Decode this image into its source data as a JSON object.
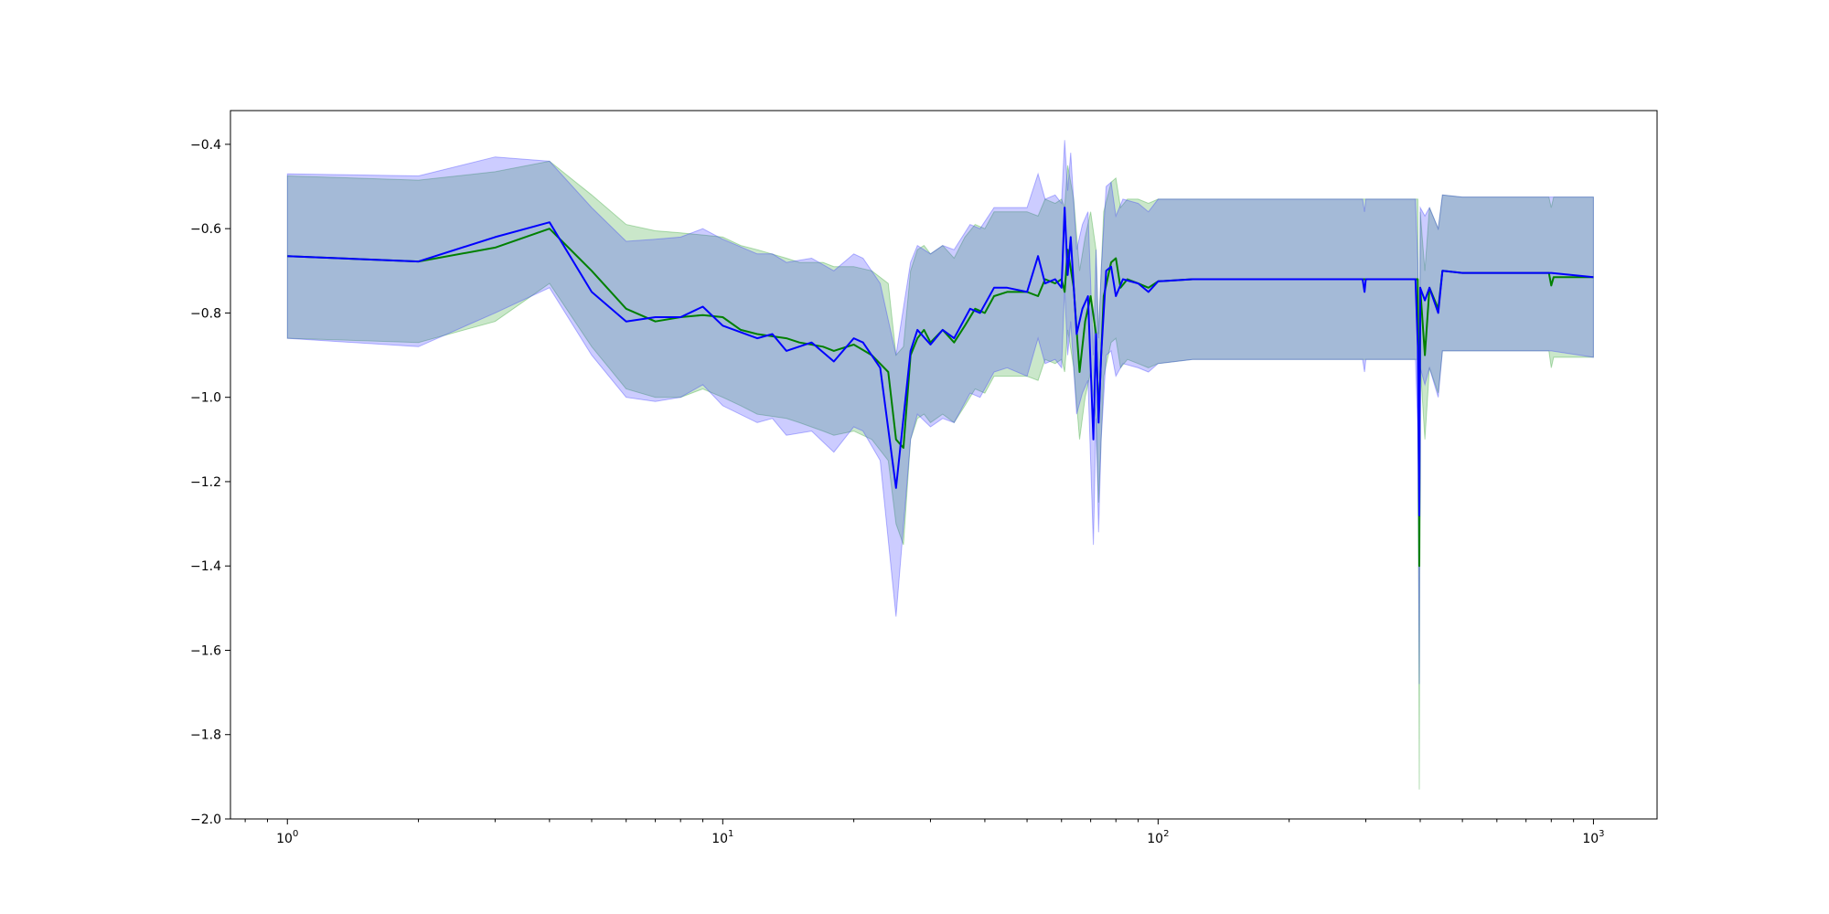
{
  "chart_data": {
    "type": "line",
    "title": "",
    "xlabel": "",
    "ylabel": "",
    "xscale": "log",
    "xlim": [
      0.74,
      1400
    ],
    "ylim": [
      -2.0,
      -0.32
    ],
    "grid": false,
    "legend": "none",
    "x_ticks": [
      {
        "value": 1,
        "base": "10",
        "exp": "0"
      },
      {
        "value": 10,
        "base": "10",
        "exp": "1"
      },
      {
        "value": 100,
        "base": "10",
        "exp": "2"
      },
      {
        "value": 1000,
        "base": "10",
        "exp": "3"
      }
    ],
    "y_ticks": [
      {
        "value": -0.4,
        "label": "−0.4"
      },
      {
        "value": -0.6,
        "label": "−0.6"
      },
      {
        "value": -0.8,
        "label": "−0.8"
      },
      {
        "value": -1.0,
        "label": "−1.0"
      },
      {
        "value": -1.2,
        "label": "−1.2"
      },
      {
        "value": -1.4,
        "label": "−1.4"
      },
      {
        "value": -1.6,
        "label": "−1.6"
      },
      {
        "value": -1.8,
        "label": "−1.8"
      },
      {
        "value": -2.0,
        "label": "−2.0"
      }
    ],
    "series": [
      {
        "color": "#008000",
        "band_color": "#2ca02c",
        "points": [
          [
            1,
            -0.665,
            -0.475,
            -0.86
          ],
          [
            2,
            -0.678,
            -0.485,
            -0.87
          ],
          [
            3,
            -0.645,
            -0.465,
            -0.82
          ],
          [
            4,
            -0.6,
            -0.44,
            -0.73
          ],
          [
            5,
            -0.7,
            -0.52,
            -0.88
          ],
          [
            6,
            -0.79,
            -0.59,
            -0.98
          ],
          [
            7,
            -0.82,
            -0.605,
            -1.0
          ],
          [
            8,
            -0.81,
            -0.61,
            -1.0
          ],
          [
            9,
            -0.805,
            -0.615,
            -0.98
          ],
          [
            10,
            -0.81,
            -0.62,
            -1.0
          ],
          [
            11,
            -0.84,
            -0.64,
            -1.02
          ],
          [
            12,
            -0.85,
            -0.65,
            -1.04
          ],
          [
            14,
            -0.86,
            -0.67,
            -1.05
          ],
          [
            15,
            -0.87,
            -0.68,
            -1.06
          ],
          [
            17,
            -0.88,
            -0.68,
            -1.08
          ],
          [
            18,
            -0.89,
            -0.69,
            -1.09
          ],
          [
            20,
            -0.875,
            -0.69,
            -1.08
          ],
          [
            22,
            -0.9,
            -0.7,
            -1.1
          ],
          [
            24,
            -0.94,
            -0.73,
            -1.15
          ],
          [
            25,
            -1.1,
            -0.9,
            -1.3
          ],
          [
            26,
            -1.12,
            -0.88,
            -1.35
          ],
          [
            27,
            -0.9,
            -0.7,
            -1.1
          ],
          [
            28,
            -0.86,
            -0.65,
            -1.05
          ],
          [
            29,
            -0.84,
            -0.64,
            -1.04
          ],
          [
            30,
            -0.87,
            -0.66,
            -1.06
          ],
          [
            32,
            -0.84,
            -0.64,
            -1.04
          ],
          [
            34,
            -0.87,
            -0.67,
            -1.06
          ],
          [
            36,
            -0.83,
            -0.62,
            -1.02
          ],
          [
            38,
            -0.79,
            -0.59,
            -0.98
          ],
          [
            40,
            -0.8,
            -0.6,
            -0.99
          ],
          [
            42,
            -0.76,
            -0.56,
            -0.95
          ],
          [
            45,
            -0.75,
            -0.56,
            -0.95
          ],
          [
            50,
            -0.75,
            -0.56,
            -0.95
          ],
          [
            53,
            -0.76,
            -0.57,
            -0.96
          ],
          [
            55,
            -0.72,
            -0.53,
            -0.91
          ],
          [
            58,
            -0.73,
            -0.54,
            -0.92
          ],
          [
            60,
            -0.72,
            -0.53,
            -0.91
          ],
          [
            61,
            -0.75,
            -0.55,
            -0.94
          ],
          [
            62,
            -0.65,
            -0.45,
            -0.84
          ],
          [
            64,
            -0.74,
            -0.53,
            -0.93
          ],
          [
            66,
            -0.94,
            -0.7,
            -1.1
          ],
          [
            68,
            -0.82,
            -0.62,
            -1.0
          ],
          [
            70,
            -0.76,
            -0.56,
            -0.94
          ],
          [
            72,
            -0.85,
            -0.65,
            -1.05
          ],
          [
            73,
            -1.05,
            -0.85,
            -1.25
          ],
          [
            74,
            -0.9,
            -0.7,
            -1.1
          ],
          [
            75,
            -0.76,
            -0.56,
            -0.95
          ],
          [
            78,
            -0.68,
            -0.49,
            -0.87
          ],
          [
            80,
            -0.67,
            -0.48,
            -0.86
          ],
          [
            82,
            -0.74,
            -0.55,
            -0.93
          ],
          [
            85,
            -0.72,
            -0.53,
            -0.91
          ],
          [
            90,
            -0.73,
            -0.53,
            -0.92
          ],
          [
            95,
            -0.74,
            -0.54,
            -0.93
          ],
          [
            100,
            -0.725,
            -0.53,
            -0.92
          ],
          [
            120,
            -0.72,
            -0.53,
            -0.91
          ],
          [
            150,
            -0.72,
            -0.53,
            -0.91
          ],
          [
            200,
            -0.72,
            -0.53,
            -0.91
          ],
          [
            300,
            -0.72,
            -0.53,
            -0.91
          ],
          [
            380,
            -0.72,
            -0.53,
            -0.91
          ],
          [
            395,
            -0.72,
            -0.53,
            -0.91
          ],
          [
            398,
            -1.4,
            -1.35,
            -1.93
          ],
          [
            400,
            -0.74,
            -0.56,
            -0.92
          ],
          [
            410,
            -0.9,
            -0.7,
            -1.1
          ],
          [
            420,
            -0.74,
            -0.55,
            -0.93
          ],
          [
            440,
            -0.79,
            -0.6,
            -0.99
          ],
          [
            450,
            -0.7,
            -0.52,
            -0.89
          ],
          [
            500,
            -0.705,
            -0.525,
            -0.89
          ],
          [
            600,
            -0.705,
            -0.525,
            -0.89
          ],
          [
            700,
            -0.705,
            -0.525,
            -0.89
          ],
          [
            790,
            -0.705,
            -0.525,
            -0.89
          ],
          [
            800,
            -0.735,
            -0.55,
            -0.93
          ],
          [
            810,
            -0.715,
            -0.525,
            -0.905
          ],
          [
            1000,
            -0.715,
            -0.525,
            -0.905
          ]
        ]
      },
      {
        "color": "#0000ff",
        "band_color": "#3333ff",
        "points": [
          [
            1,
            -0.665,
            -0.47,
            -0.86
          ],
          [
            2,
            -0.678,
            -0.475,
            -0.88
          ],
          [
            3,
            -0.62,
            -0.43,
            -0.8
          ],
          [
            4,
            -0.585,
            -0.44,
            -0.74
          ],
          [
            5,
            -0.75,
            -0.55,
            -0.9
          ],
          [
            6,
            -0.82,
            -0.63,
            -1.0
          ],
          [
            7,
            -0.81,
            -0.625,
            -1.01
          ],
          [
            8,
            -0.81,
            -0.62,
            -1.0
          ],
          [
            9,
            -0.785,
            -0.6,
            -0.97
          ],
          [
            10,
            -0.83,
            -0.625,
            -1.02
          ],
          [
            12,
            -0.86,
            -0.66,
            -1.06
          ],
          [
            13,
            -0.85,
            -0.66,
            -1.05
          ],
          [
            14,
            -0.89,
            -0.68,
            -1.09
          ],
          [
            16,
            -0.87,
            -0.67,
            -1.08
          ],
          [
            18,
            -0.915,
            -0.7,
            -1.13
          ],
          [
            20,
            -0.86,
            -0.66,
            -1.07
          ],
          [
            21,
            -0.87,
            -0.67,
            -1.08
          ],
          [
            23,
            -0.93,
            -0.73,
            -1.15
          ],
          [
            25,
            -1.215,
            -0.9,
            -1.52
          ],
          [
            27,
            -0.89,
            -0.68,
            -1.1
          ],
          [
            28,
            -0.84,
            -0.64,
            -1.04
          ],
          [
            30,
            -0.875,
            -0.66,
            -1.07
          ],
          [
            32,
            -0.84,
            -0.64,
            -1.05
          ],
          [
            34,
            -0.86,
            -0.65,
            -1.06
          ],
          [
            37,
            -0.79,
            -0.59,
            -0.99
          ],
          [
            39,
            -0.8,
            -0.6,
            -1.0
          ],
          [
            42,
            -0.74,
            -0.55,
            -0.94
          ],
          [
            45,
            -0.74,
            -0.55,
            -0.93
          ],
          [
            50,
            -0.75,
            -0.55,
            -0.95
          ],
          [
            53,
            -0.665,
            -0.47,
            -0.86
          ],
          [
            55,
            -0.73,
            -0.53,
            -0.92
          ],
          [
            58,
            -0.72,
            -0.52,
            -0.91
          ],
          [
            60,
            -0.74,
            -0.54,
            -0.93
          ],
          [
            61,
            -0.55,
            -0.39,
            -0.74
          ],
          [
            62,
            -0.71,
            -0.51,
            -0.9
          ],
          [
            63,
            -0.62,
            -0.42,
            -0.82
          ],
          [
            65,
            -0.85,
            -0.65,
            -1.04
          ],
          [
            67,
            -0.79,
            -0.59,
            -0.99
          ],
          [
            69,
            -0.76,
            -0.56,
            -0.96
          ],
          [
            71,
            -1.1,
            -0.9,
            -1.35
          ],
          [
            72,
            -0.85,
            -0.65,
            -1.05
          ],
          [
            73,
            -1.06,
            -0.86,
            -1.32
          ],
          [
            74,
            -0.9,
            -0.7,
            -1.1
          ],
          [
            76,
            -0.7,
            -0.5,
            -0.9
          ],
          [
            78,
            -0.69,
            -0.49,
            -0.89
          ],
          [
            80,
            -0.76,
            -0.57,
            -0.95
          ],
          [
            83,
            -0.72,
            -0.53,
            -0.92
          ],
          [
            90,
            -0.73,
            -0.54,
            -0.93
          ],
          [
            95,
            -0.75,
            -0.56,
            -0.94
          ],
          [
            100,
            -0.725,
            -0.53,
            -0.92
          ],
          [
            120,
            -0.72,
            -0.53,
            -0.91
          ],
          [
            200,
            -0.72,
            -0.53,
            -0.91
          ],
          [
            295,
            -0.72,
            -0.53,
            -0.91
          ],
          [
            298,
            -0.75,
            -0.56,
            -0.94
          ],
          [
            300,
            -0.72,
            -0.53,
            -0.91
          ],
          [
            390,
            -0.72,
            -0.53,
            -0.91
          ],
          [
            395,
            -0.88,
            -0.68,
            -1.08
          ],
          [
            398,
            -1.28,
            -1.08,
            -1.68
          ],
          [
            400,
            -0.74,
            -0.55,
            -0.93
          ],
          [
            410,
            -0.77,
            -0.57,
            -0.97
          ],
          [
            420,
            -0.74,
            -0.55,
            -0.93
          ],
          [
            440,
            -0.8,
            -0.6,
            -1.0
          ],
          [
            450,
            -0.7,
            -0.52,
            -0.89
          ],
          [
            500,
            -0.705,
            -0.525,
            -0.89
          ],
          [
            600,
            -0.705,
            -0.525,
            -0.89
          ],
          [
            800,
            -0.705,
            -0.525,
            -0.89
          ],
          [
            1000,
            -0.715,
            -0.525,
            -0.905
          ]
        ]
      }
    ]
  }
}
